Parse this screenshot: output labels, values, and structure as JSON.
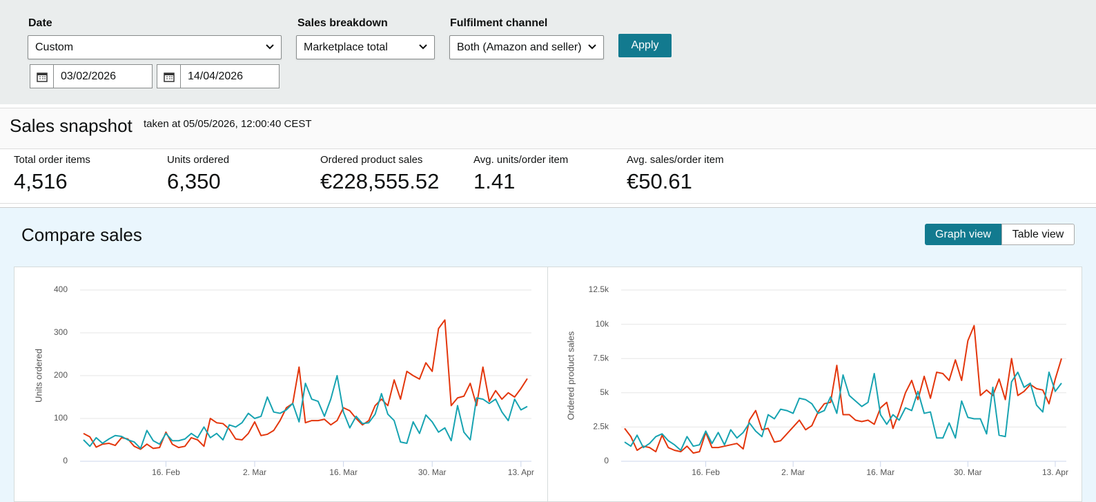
{
  "filters": {
    "date": {
      "label": "Date",
      "value": "Custom",
      "start": "03/02/2026",
      "end": "14/04/2026"
    },
    "sales_breakdown": {
      "label": "Sales breakdown",
      "value": "Marketplace total"
    },
    "fulfilment_channel": {
      "label": "Fulfilment channel",
      "value": "Both (Amazon and seller)"
    },
    "apply": "Apply"
  },
  "snapshot": {
    "title": "Sales snapshot",
    "taken_at": "taken at 05/05/2026, 12:00:40 CEST",
    "metrics": [
      {
        "label": "Total order items",
        "value": "4,516"
      },
      {
        "label": "Units ordered",
        "value": "6,350"
      },
      {
        "label": "Ordered product sales",
        "value": "€228,555.52"
      },
      {
        "label": "Avg. units/order item",
        "value": "1.41"
      },
      {
        "label": "Avg. sales/order item",
        "value": "€50.61"
      }
    ]
  },
  "compare": {
    "title": "Compare sales",
    "views": [
      "Graph view",
      "Table view"
    ]
  },
  "chart_data": [
    {
      "type": "line",
      "ylabel": "Units ordered",
      "categories": [
        null,
        null,
        null,
        null,
        null,
        null,
        null,
        null,
        null,
        null,
        null,
        null,
        null,
        "16. Feb",
        null,
        null,
        null,
        null,
        null,
        null,
        null,
        null,
        null,
        null,
        null,
        null,
        null,
        "2. Mar",
        null,
        null,
        null,
        null,
        null,
        null,
        null,
        null,
        null,
        null,
        null,
        null,
        null,
        "16. Mar",
        null,
        null,
        null,
        null,
        null,
        null,
        null,
        null,
        null,
        null,
        null,
        null,
        null,
        "30. Mar",
        null,
        null,
        null,
        null,
        null,
        null,
        null,
        null,
        null,
        null,
        null,
        null,
        null,
        "13. Apr",
        null
      ],
      "ylim": [
        0,
        400
      ],
      "yticks": [
        0,
        100,
        200,
        300,
        400
      ],
      "grid": true,
      "series": [
        {
          "color": "#e3360c",
          "values": [
            65,
            57,
            33,
            40,
            42,
            37,
            55,
            52,
            35,
            28,
            40,
            30,
            32,
            68,
            40,
            32,
            35,
            55,
            50,
            35,
            100,
            90,
            88,
            75,
            52,
            50,
            65,
            92,
            60,
            63,
            72,
            95,
            125,
            135,
            220,
            90,
            95,
            95,
            98,
            85,
            95,
            125,
            118,
            100,
            85,
            95,
            130,
            145,
            130,
            190,
            145,
            210,
            200,
            192,
            230,
            210,
            310,
            330,
            130,
            148,
            152,
            182,
            130,
            220,
            140,
            165,
            145,
            160,
            150,
            170,
            193
          ]
        },
        {
          "color": "#17a3b1",
          "values": [
            50,
            35,
            55,
            42,
            52,
            60,
            58,
            50,
            45,
            30,
            72,
            48,
            40,
            65,
            48,
            48,
            52,
            65,
            55,
            80,
            55,
            65,
            50,
            85,
            80,
            90,
            112,
            100,
            105,
            150,
            115,
            112,
            120,
            135,
            92,
            182,
            145,
            140,
            105,
            145,
            200,
            115,
            78,
            105,
            88,
            90,
            110,
            158,
            110,
            95,
            45,
            42,
            92,
            65,
            108,
            92,
            68,
            78,
            48,
            130,
            68,
            50,
            148,
            145,
            135,
            145,
            115,
            95,
            145,
            120,
            128
          ]
        }
      ]
    },
    {
      "type": "line",
      "ylabel": "Ordered product sales",
      "categories": [
        null,
        null,
        null,
        null,
        null,
        null,
        null,
        null,
        null,
        null,
        null,
        null,
        null,
        "16. Feb",
        null,
        null,
        null,
        null,
        null,
        null,
        null,
        null,
        null,
        null,
        null,
        null,
        null,
        "2. Mar",
        null,
        null,
        null,
        null,
        null,
        null,
        null,
        null,
        null,
        null,
        null,
        null,
        null,
        "16. Mar",
        null,
        null,
        null,
        null,
        null,
        null,
        null,
        null,
        null,
        null,
        null,
        null,
        null,
        "30. Mar",
        null,
        null,
        null,
        null,
        null,
        null,
        null,
        null,
        null,
        null,
        null,
        null,
        null,
        "13. Apr",
        null
      ],
      "ylim": [
        0,
        12500
      ],
      "yticks": [
        0,
        {
          "value": 2500,
          "label": "2.5k"
        },
        {
          "value": 5000,
          "label": "5k"
        },
        {
          "value": 7500,
          "label": "7.5k"
        },
        {
          "value": 10000,
          "label": "10k"
        },
        {
          "value": 12500,
          "label": "12.5k"
        }
      ],
      "grid": true,
      "series": [
        {
          "color": "#e3360c",
          "values": [
            2400,
            1800,
            800,
            1100,
            1000,
            700,
            1900,
            1000,
            800,
            700,
            1100,
            600,
            700,
            2100,
            1000,
            1000,
            1100,
            1200,
            1300,
            900,
            3000,
            3700,
            2300,
            2400,
            1400,
            1500,
            2000,
            2500,
            3000,
            2300,
            2600,
            3600,
            4200,
            4300,
            7000,
            3400,
            3400,
            3000,
            2900,
            3000,
            2700,
            3900,
            4300,
            2400,
            3600,
            5000,
            5900,
            4500,
            6200,
            4600,
            6500,
            6400,
            5900,
            7400,
            5900,
            8800,
            9900,
            4800,
            5200,
            4800,
            6000,
            4500,
            7500,
            4800,
            5100,
            5600,
            5300,
            5200,
            4200,
            6000,
            7500
          ]
        },
        {
          "color": "#17a3b1",
          "values": [
            1400,
            1100,
            1900,
            1000,
            1300,
            1800,
            2000,
            1500,
            1200,
            800,
            1800,
            1100,
            1200,
            2200,
            1300,
            2100,
            1200,
            2300,
            1700,
            2100,
            2800,
            2200,
            1800,
            3400,
            3100,
            3800,
            3700,
            3500,
            4600,
            4500,
            4200,
            3500,
            3700,
            4700,
            3500,
            6300,
            4800,
            4400,
            4000,
            4300,
            6400,
            3400,
            2700,
            3400,
            3000,
            3900,
            3700,
            5100,
            3500,
            3600,
            1700,
            1700,
            2800,
            1700,
            4400,
            3200,
            3100,
            3100,
            2000,
            5400,
            1900,
            1800,
            5800,
            6500,
            5400,
            5700,
            4100,
            3600,
            6500,
            5100,
            5700
          ]
        }
      ]
    }
  ]
}
